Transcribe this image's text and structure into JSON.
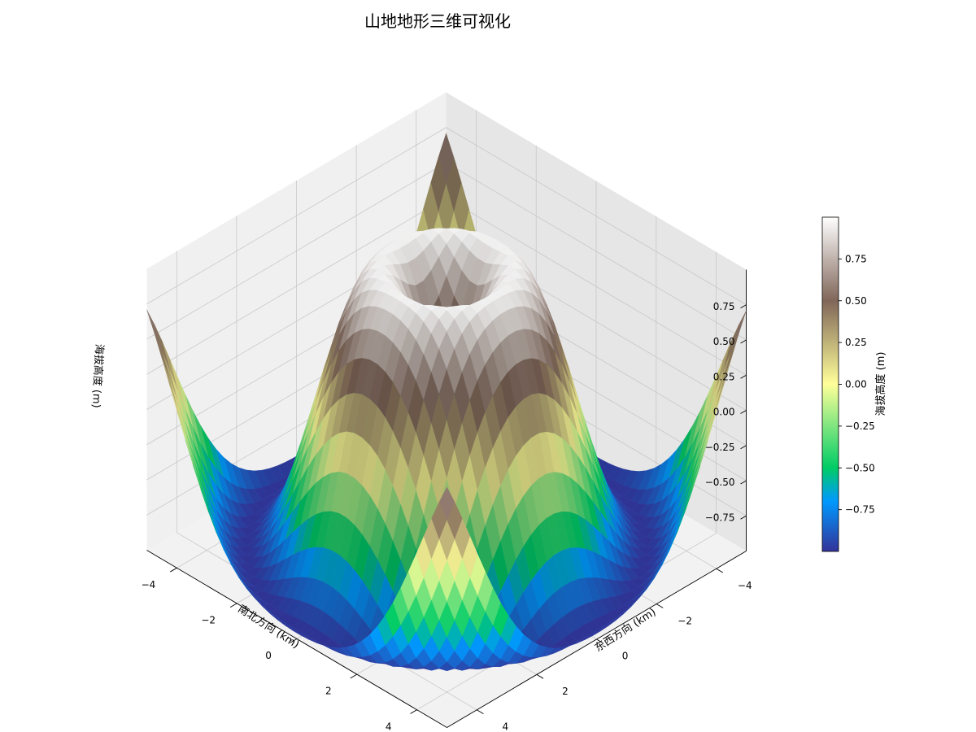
{
  "chart_data": {
    "type": "surface3d",
    "title": "山地地形三维可视化",
    "function": "z = sin(sqrt(x^2 + y^2))",
    "x": {
      "label": "东西方向 (km)",
      "range": [
        -5,
        5
      ],
      "ticks": [
        -4,
        -2,
        0,
        2,
        4
      ]
    },
    "y": {
      "label": "南北方向 (km)",
      "range": [
        -5,
        5
      ],
      "ticks": [
        -4,
        -2,
        0,
        2,
        4
      ]
    },
    "z": {
      "label": "海拔高度 (m)",
      "range": [
        -1.0,
        1.0
      ],
      "ticks": [
        -0.75,
        -0.5,
        -0.25,
        0.0,
        0.25,
        0.5,
        0.75
      ],
      "tick_labels": [
        "−0.75",
        "−0.50",
        "−0.25",
        "0.00",
        "0.25",
        "0.50",
        "0.75"
      ]
    },
    "grid_points": 40,
    "view": {
      "elev_deg": 30,
      "azim_deg": 45
    },
    "colormap": "terrain",
    "grid": true,
    "colorbar": {
      "label": "海拔高度 (m)",
      "range": [
        -1.0,
        1.0
      ],
      "ticks": [
        -0.75,
        -0.5,
        -0.25,
        0.0,
        0.25,
        0.5,
        0.75
      ],
      "tick_labels": [
        "−0.75",
        "−0.50",
        "−0.25",
        "0.00",
        "0.25",
        "0.50",
        "0.75"
      ],
      "stops": [
        {
          "v": 0.0,
          "color": "#333399"
        },
        {
          "v": 0.15,
          "color": "#0099ff"
        },
        {
          "v": 0.25,
          "color": "#00cc66"
        },
        {
          "v": 0.5,
          "color": "#ffff99"
        },
        {
          "v": 0.75,
          "color": "#806659"
        },
        {
          "v": 1.0,
          "color": "#ffffff"
        }
      ]
    }
  }
}
